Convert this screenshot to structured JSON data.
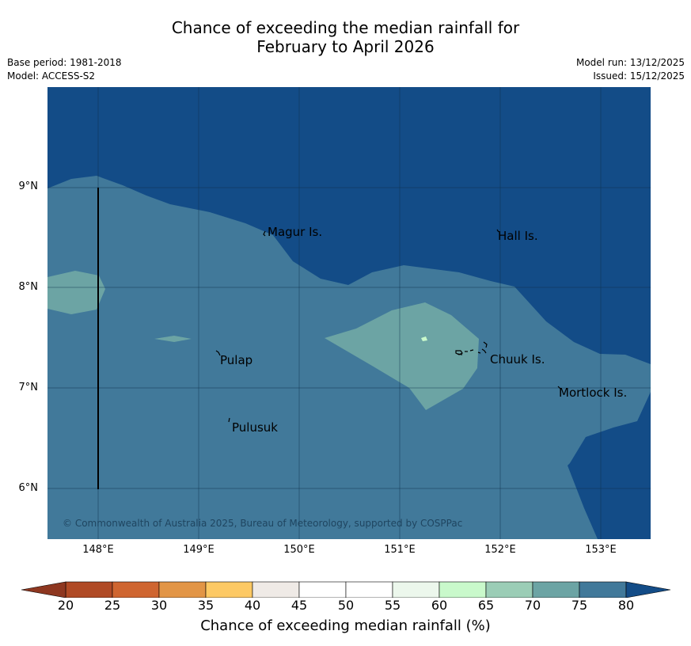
{
  "title": {
    "line1": "Chance of exceeding the median rainfall for",
    "line2": "February to April 2026"
  },
  "info": {
    "base_period": "Base period: 1981-2018",
    "model": "Model: ACCESS-S2",
    "model_run": "Model run: 13/12/2025",
    "issued": "Issued: 15/12/2025"
  },
  "map": {
    "lat_labels": [
      "9°N",
      "8°N",
      "7°N",
      "6°N"
    ],
    "lon_labels": [
      "148°E",
      "149°E",
      "150°E",
      "151°E",
      "152°E",
      "153°E"
    ],
    "places": [
      "Magur Is.",
      "Hall Is.",
      "Pulap",
      "Chuuk Is.",
      "Mortlock Is.",
      "Pulusuk"
    ],
    "copyright": "© Commonwealth of Australia 2025, Bureau of Meteorology, supported by COSPPac",
    "colors": {
      "category_75_80": "#41799a",
      "category_80_plus": "#134c87",
      "category_70_75": "#6ca4a4"
    }
  },
  "colorbar": {
    "ticks": [
      "20",
      "25",
      "30",
      "35",
      "40",
      "45",
      "50",
      "55",
      "60",
      "65",
      "70",
      "75",
      "80"
    ],
    "label": "Chance of exceeding median rainfall (%)",
    "under_color": "#8e3720",
    "over_color": "#134c87",
    "colors": [
      "#b04a25",
      "#cf6530",
      "#e29546",
      "#fdc964",
      "#efeae6",
      "#ffffff",
      "#ffffff",
      "#ecf7ec",
      "#c9f9cb",
      "#9bcdb6",
      "#6ca4a4",
      "#41799a"
    ]
  }
}
